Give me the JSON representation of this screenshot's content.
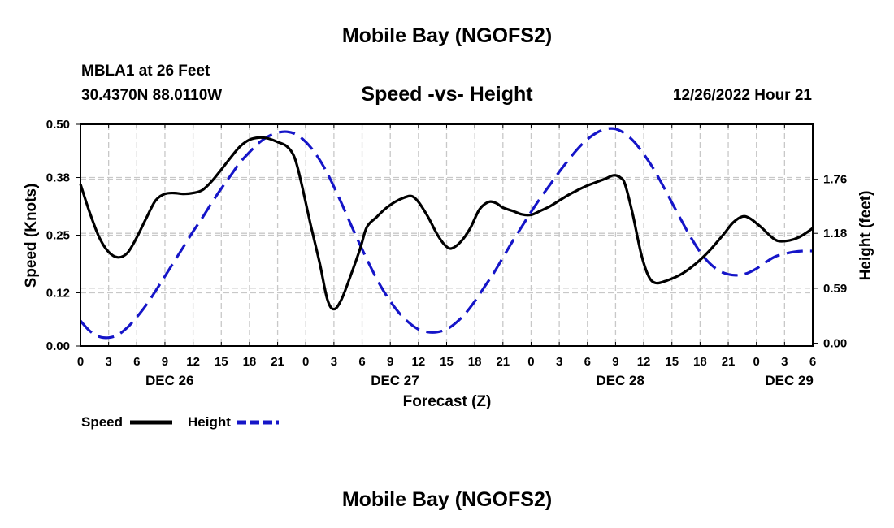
{
  "page": {
    "title": "Mobile Bay (NGOFS2)",
    "title_repeat": "Mobile Bay (NGOFS2)",
    "station": "MBLA1 at 26 Feet",
    "coordinates": "30.4370N  88.0110W",
    "subtitle": "Speed -vs- Height",
    "datetime": "12/26/2022 Hour 21"
  },
  "colors": {
    "speed": "#000000",
    "height": "#1515c8",
    "grid": "#c8c8c8"
  },
  "chart_data": {
    "type": "line",
    "title": "Speed -vs- Height",
    "xlabel": "Forecast (Z)",
    "ylabel": "Speed (Knots)",
    "y2label": "Height (feet)",
    "x_range_hours": [
      0,
      78
    ],
    "x_ticks_hours": [
      0,
      3,
      6,
      9,
      12,
      15,
      18,
      21,
      24,
      27,
      30,
      33,
      36,
      39,
      42,
      45,
      48,
      51,
      54,
      57,
      60,
      63,
      66,
      69,
      72,
      75,
      78
    ],
    "x_tick_labels": [
      "0",
      "3",
      "6",
      "9",
      "12",
      "15",
      "18",
      "21",
      "0",
      "3",
      "6",
      "9",
      "12",
      "15",
      "18",
      "21",
      "0",
      "3",
      "6",
      "9",
      "12",
      "15",
      "18",
      "21",
      "0",
      "3",
      "6"
    ],
    "day_labels": [
      {
        "hour": 9.5,
        "label": "DEC 26"
      },
      {
        "hour": 33.5,
        "label": "DEC 27"
      },
      {
        "hour": 57.5,
        "label": "DEC 28"
      },
      {
        "hour": 75.5,
        "label": "DEC 29"
      }
    ],
    "ylim": [
      0,
      0.5
    ],
    "y_ticks": [
      0.0,
      0.12,
      0.25,
      0.38,
      0.5
    ],
    "y_tick_labels": [
      "0.00",
      "0.12",
      "0.25",
      "0.38",
      "0.50"
    ],
    "y2lim": [
      -0.03,
      2.35
    ],
    "y2_ticks": [
      0.0,
      0.59,
      1.18,
      1.76
    ],
    "y2_tick_labels": [
      "0.00",
      "0.59",
      "1.18",
      "1.76"
    ],
    "grid": true,
    "legend": [
      {
        "label": "Speed",
        "series": "speed"
      },
      {
        "label": "Height",
        "series": "height"
      }
    ],
    "series": [
      {
        "name": "Speed",
        "axis": "left",
        "style": "solid",
        "points": [
          [
            0,
            0.365
          ],
          [
            1,
            0.3
          ],
          [
            2,
            0.245
          ],
          [
            3,
            0.212
          ],
          [
            4,
            0.2
          ],
          [
            5,
            0.21
          ],
          [
            6,
            0.245
          ],
          [
            7,
            0.288
          ],
          [
            8,
            0.328
          ],
          [
            9,
            0.343
          ],
          [
            10,
            0.345
          ],
          [
            11,
            0.343
          ],
          [
            12,
            0.345
          ],
          [
            13,
            0.352
          ],
          [
            14,
            0.372
          ],
          [
            15,
            0.398
          ],
          [
            16,
            0.425
          ],
          [
            17,
            0.45
          ],
          [
            18,
            0.465
          ],
          [
            19,
            0.47
          ],
          [
            20,
            0.468
          ],
          [
            21,
            0.46
          ],
          [
            22,
            0.45
          ],
          [
            22.8,
            0.425
          ],
          [
            23.5,
            0.37
          ],
          [
            24.5,
            0.275
          ],
          [
            25.5,
            0.185
          ],
          [
            26.3,
            0.105
          ],
          [
            27,
            0.083
          ],
          [
            27.8,
            0.105
          ],
          [
            28.8,
            0.16
          ],
          [
            29.8,
            0.22
          ],
          [
            30.5,
            0.268
          ],
          [
            31.5,
            0.29
          ],
          [
            32.5,
            0.31
          ],
          [
            33.5,
            0.325
          ],
          [
            34.5,
            0.335
          ],
          [
            35.3,
            0.338
          ],
          [
            36,
            0.325
          ],
          [
            37,
            0.292
          ],
          [
            38,
            0.252
          ],
          [
            38.8,
            0.228
          ],
          [
            39.5,
            0.22
          ],
          [
            40.5,
            0.235
          ],
          [
            41.5,
            0.265
          ],
          [
            42.5,
            0.308
          ],
          [
            43.5,
            0.325
          ],
          [
            44.3,
            0.322
          ],
          [
            45,
            0.312
          ],
          [
            46,
            0.305
          ],
          [
            47,
            0.297
          ],
          [
            48,
            0.296
          ],
          [
            49,
            0.305
          ],
          [
            50,
            0.315
          ],
          [
            51,
            0.328
          ],
          [
            52,
            0.341
          ],
          [
            53,
            0.352
          ],
          [
            54,
            0.362
          ],
          [
            55,
            0.37
          ],
          [
            56,
            0.378
          ],
          [
            56.8,
            0.385
          ],
          [
            57.5,
            0.38
          ],
          [
            58,
            0.365
          ],
          [
            58.8,
            0.3
          ],
          [
            59.7,
            0.21
          ],
          [
            60.5,
            0.158
          ],
          [
            61.3,
            0.142
          ],
          [
            62.5,
            0.148
          ],
          [
            64,
            0.162
          ],
          [
            65.5,
            0.185
          ],
          [
            67,
            0.215
          ],
          [
            68.5,
            0.252
          ],
          [
            69.5,
            0.278
          ],
          [
            70.5,
            0.292
          ],
          [
            71.3,
            0.288
          ],
          [
            72.5,
            0.268
          ],
          [
            73.5,
            0.248
          ],
          [
            74.3,
            0.237
          ],
          [
            75.5,
            0.238
          ],
          [
            76.5,
            0.245
          ],
          [
            77.5,
            0.258
          ],
          [
            78,
            0.266
          ]
        ]
      },
      {
        "name": "Height",
        "axis": "right",
        "style": "dashed",
        "points": [
          [
            0,
            0.24
          ],
          [
            1,
            0.13
          ],
          [
            2,
            0.07
          ],
          [
            3,
            0.06
          ],
          [
            4,
            0.09
          ],
          [
            5,
            0.17
          ],
          [
            6,
            0.28
          ],
          [
            7,
            0.41
          ],
          [
            8,
            0.56
          ],
          [
            9,
            0.72
          ],
          [
            10,
            0.88
          ],
          [
            11,
            1.04
          ],
          [
            12,
            1.2
          ],
          [
            13,
            1.35
          ],
          [
            14,
            1.51
          ],
          [
            15,
            1.66
          ],
          [
            16,
            1.8
          ],
          [
            17,
            1.94
          ],
          [
            18,
            2.05
          ],
          [
            19,
            2.15
          ],
          [
            20,
            2.22
          ],
          [
            21,
            2.26
          ],
          [
            22,
            2.27
          ],
          [
            23,
            2.24
          ],
          [
            24,
            2.16
          ],
          [
            25,
            2.04
          ],
          [
            26,
            1.88
          ],
          [
            27,
            1.68
          ],
          [
            28,
            1.46
          ],
          [
            29,
            1.23
          ],
          [
            30,
            1.01
          ],
          [
            31,
            0.8
          ],
          [
            32,
            0.61
          ],
          [
            33,
            0.45
          ],
          [
            34,
            0.32
          ],
          [
            35,
            0.22
          ],
          [
            36,
            0.15
          ],
          [
            37,
            0.12
          ],
          [
            38,
            0.12
          ],
          [
            39,
            0.15
          ],
          [
            40,
            0.22
          ],
          [
            41,
            0.32
          ],
          [
            42,
            0.45
          ],
          [
            43,
            0.6
          ],
          [
            44,
            0.75
          ],
          [
            45,
            0.92
          ],
          [
            46,
            1.09
          ],
          [
            47,
            1.25
          ],
          [
            48,
            1.41
          ],
          [
            49,
            1.56
          ],
          [
            50,
            1.7
          ],
          [
            51,
            1.84
          ],
          [
            52,
            1.97
          ],
          [
            53,
            2.09
          ],
          [
            54,
            2.19
          ],
          [
            55,
            2.26
          ],
          [
            56,
            2.3
          ],
          [
            57,
            2.3
          ],
          [
            58,
            2.25
          ],
          [
            59,
            2.16
          ],
          [
            60,
            2.03
          ],
          [
            61,
            1.88
          ],
          [
            62,
            1.7
          ],
          [
            63,
            1.51
          ],
          [
            64,
            1.32
          ],
          [
            65,
            1.14
          ],
          [
            66,
            0.98
          ],
          [
            67,
            0.86
          ],
          [
            68,
            0.78
          ],
          [
            69,
            0.74
          ],
          [
            70,
            0.73
          ],
          [
            71,
            0.75
          ],
          [
            72,
            0.8
          ],
          [
            73,
            0.87
          ],
          [
            74,
            0.93
          ],
          [
            75,
            0.96
          ],
          [
            76,
            0.98
          ],
          [
            77,
            0.99
          ],
          [
            78,
            0.99
          ]
        ]
      }
    ]
  }
}
